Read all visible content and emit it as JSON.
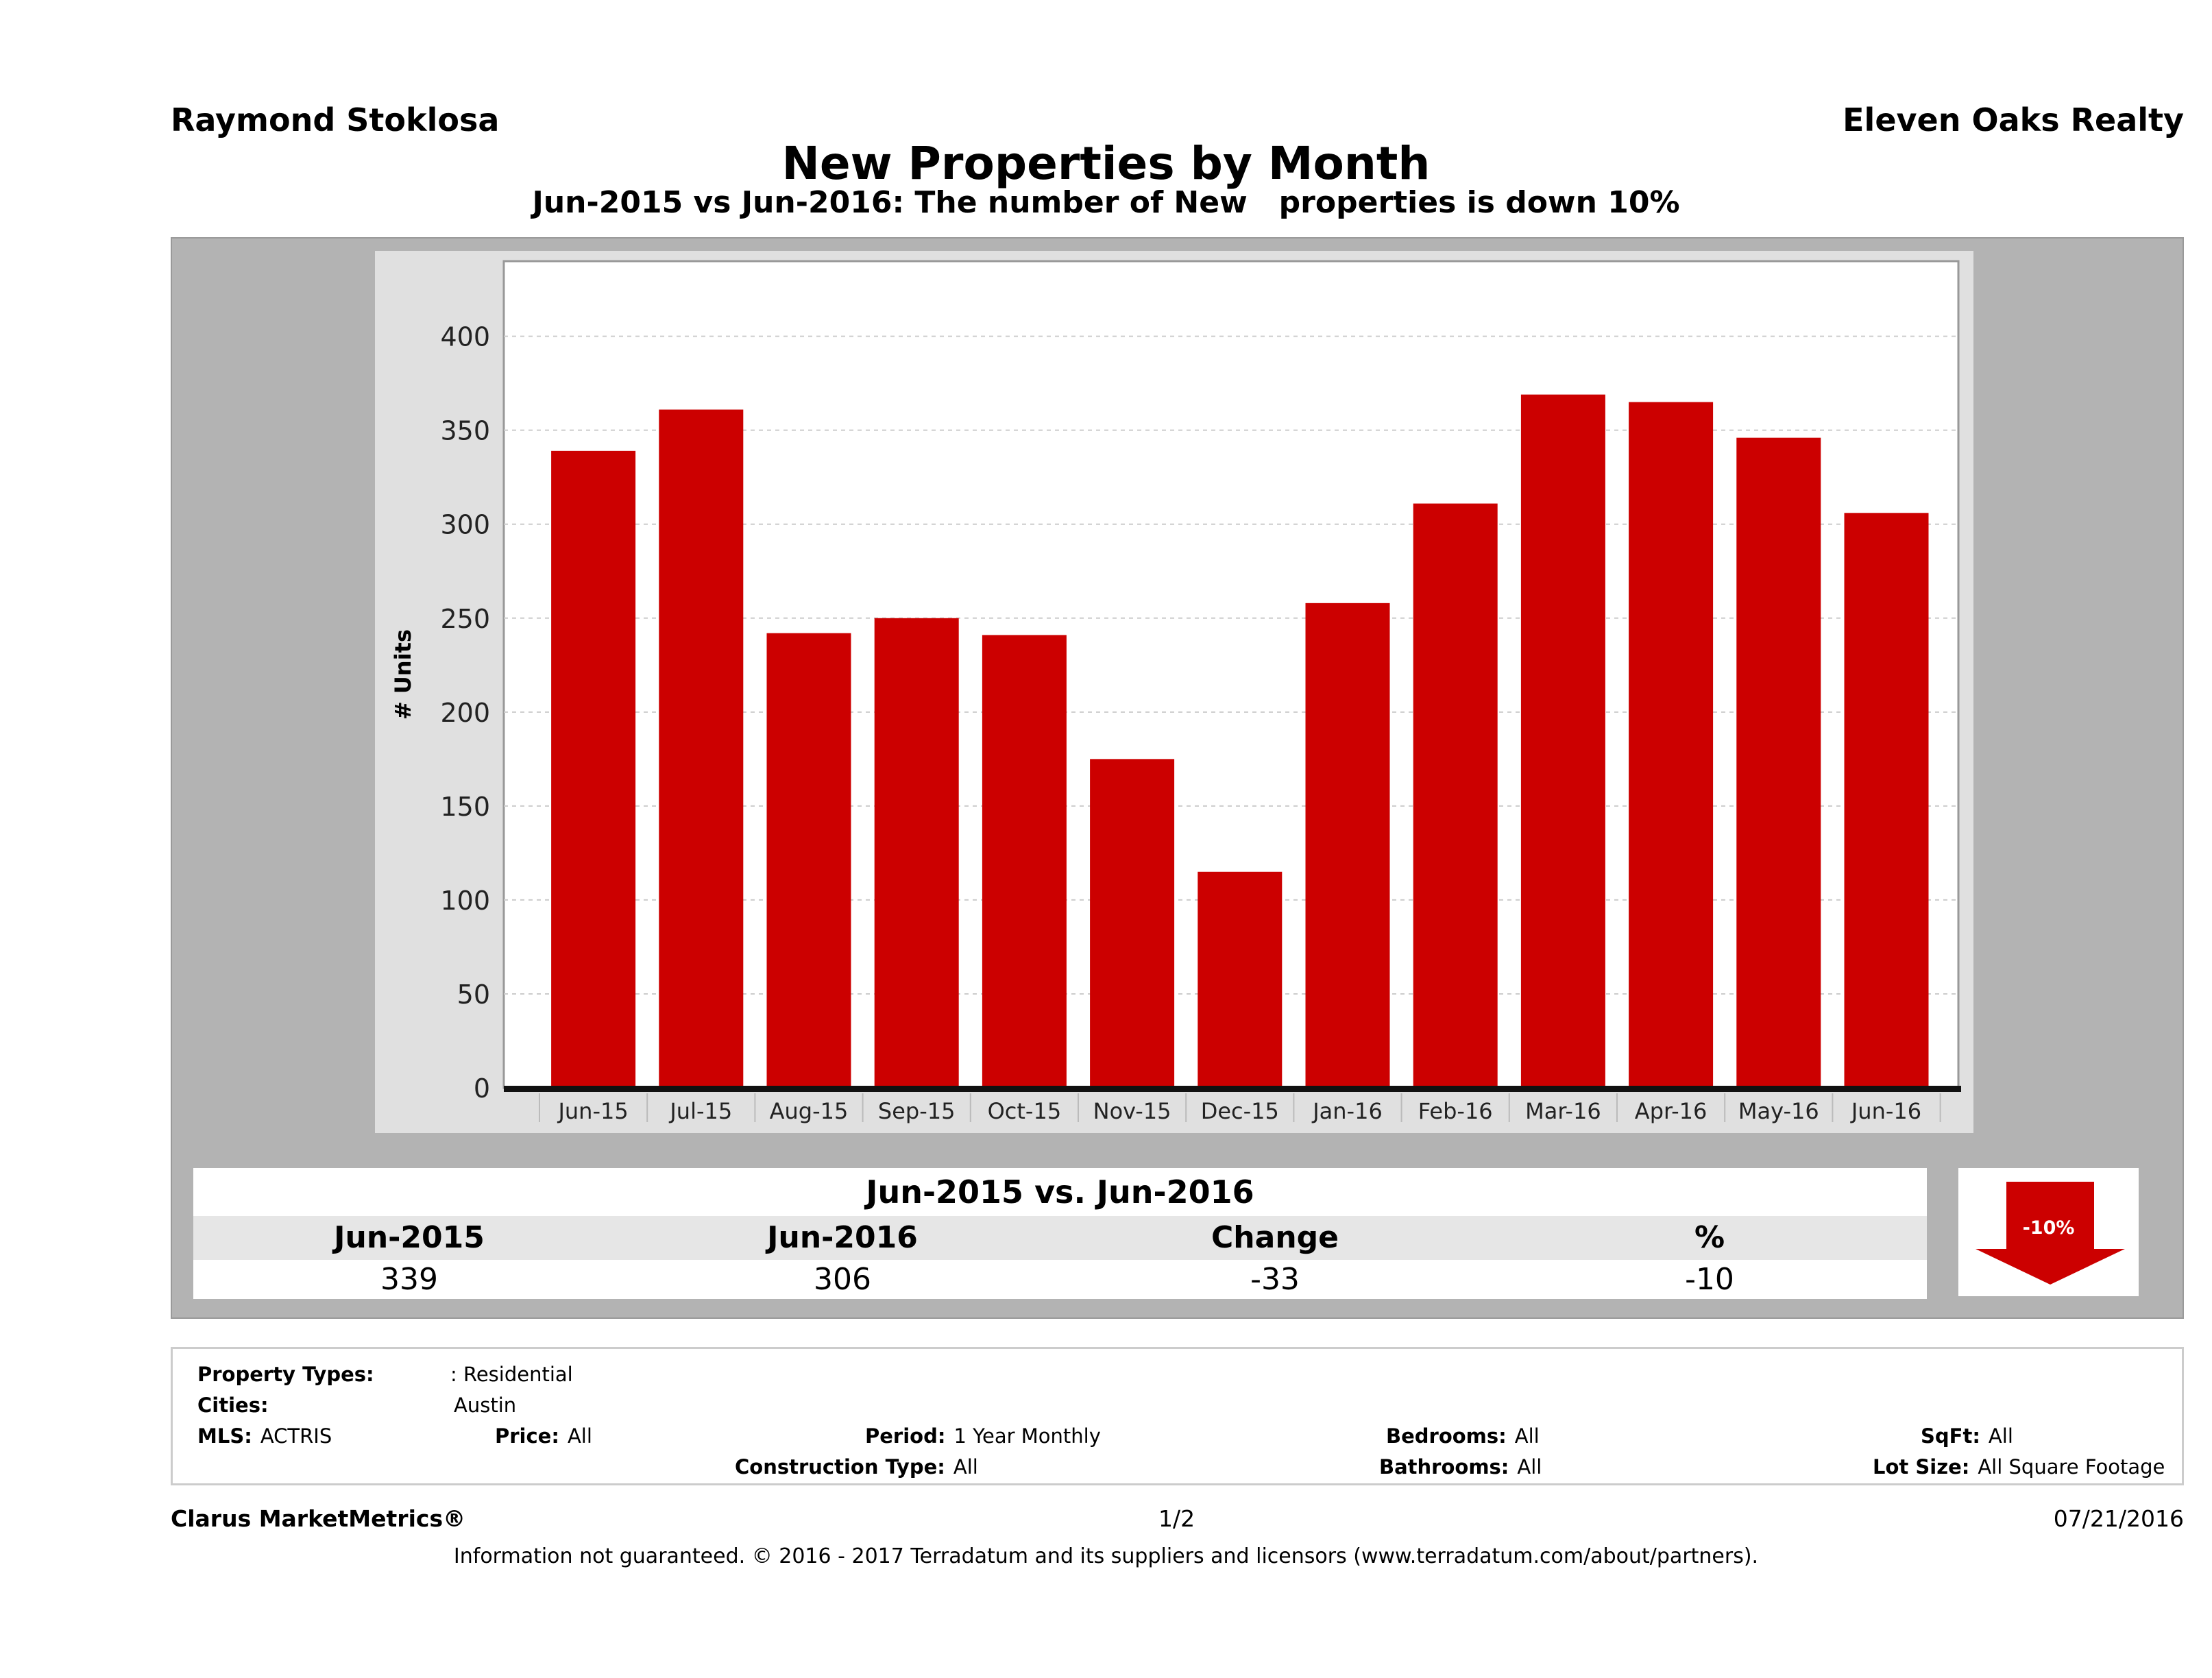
{
  "header": {
    "agent": "Raymond Stoklosa",
    "brokerage": "Eleven Oaks Realty"
  },
  "chart_data": {
    "type": "bar",
    "title": "New Properties by Month",
    "subtitle": "Jun-2015 vs Jun-2016: The number of New   properties is down 10%",
    "xlabel": "",
    "ylabel": "# Units",
    "categories": [
      "Jun-15",
      "Jul-15",
      "Aug-15",
      "Sep-15",
      "Oct-15",
      "Nov-15",
      "Dec-15",
      "Jan-16",
      "Feb-16",
      "Mar-16",
      "Apr-16",
      "May-16",
      "Jun-16"
    ],
    "values": [
      339,
      361,
      242,
      250,
      241,
      175,
      115,
      258,
      311,
      369,
      365,
      346,
      306
    ],
    "ylim": [
      0,
      440
    ],
    "yticks": [
      0,
      50,
      100,
      150,
      200,
      250,
      300,
      350,
      400
    ],
    "grid": true,
    "bar_color": "#cc0000"
  },
  "summary": {
    "title": "Jun-2015 vs. Jun-2016",
    "headers": [
      "Jun-2015",
      "Jun-2016",
      "Change",
      "%"
    ],
    "values": [
      "339",
      "306",
      "-33",
      "-10"
    ],
    "badge": "-10%",
    "badge_icon": "down-arrow-icon"
  },
  "criteria": {
    "property_types_label": "Property Types:",
    "property_types": ": Residential",
    "cities_label": "Cities:",
    "cities": "Austin",
    "mls_label": "MLS:",
    "mls": "ACTRIS",
    "price_label": "Price:",
    "price": "All",
    "period_label": "Period:",
    "period": "1 Year Monthly",
    "bedrooms_label": "Bedrooms:",
    "bedrooms": "All",
    "sqft_label": "SqFt:",
    "sqft": "All",
    "construction_label": "Construction Type:",
    "construction": "All",
    "bathrooms_label": "Bathrooms:",
    "bathrooms": "All",
    "lot_label": "Lot Size:",
    "lot": "All Square Footage"
  },
  "footer": {
    "brand": "Clarus MarketMetrics®",
    "page": "1/2",
    "date": "07/21/2016",
    "disclaimer": "Information not guaranteed. © 2016 - 2017 Terradatum and its suppliers and licensors (www.terradatum.com/about/partners)."
  }
}
